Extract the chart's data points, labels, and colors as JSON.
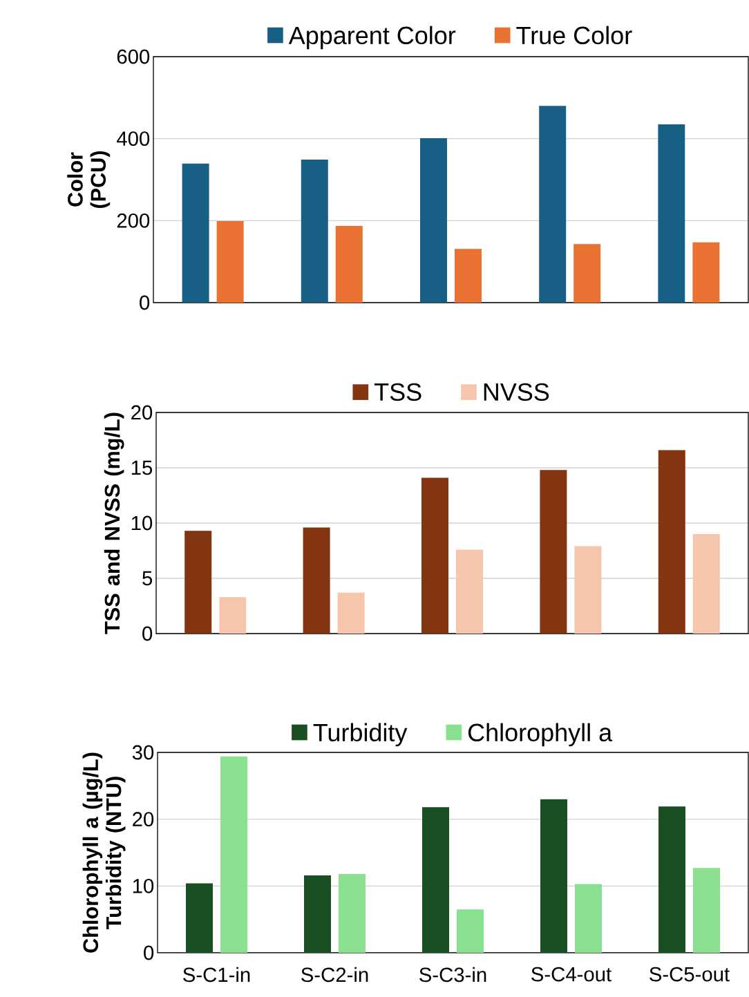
{
  "chart_data": [
    {
      "type": "bar",
      "ylabel": "Color (PCU)",
      "categories": [
        null,
        null,
        null,
        null,
        null
      ],
      "ylim": [
        0,
        600
      ],
      "yticks": [
        0,
        200,
        400,
        600
      ],
      "grid": "y",
      "legend": "top",
      "tick_labels": "y",
      "series": [
        {
          "name": "Apparent Color",
          "color": "#185f85",
          "values": [
            339,
            349,
            401,
            480,
            435
          ]
        },
        {
          "name": "True Color",
          "color": "#e97132",
          "values": [
            199,
            187,
            131,
            143,
            147
          ]
        }
      ]
    },
    {
      "type": "bar",
      "ylabel": "TSS and NVSS (mg/L)",
      "categories": [
        null,
        null,
        null,
        null,
        null
      ],
      "ylim": [
        0,
        20
      ],
      "yticks": [
        0,
        5,
        10,
        15,
        20
      ],
      "grid": "y",
      "legend": "top",
      "tick_labels": "y",
      "series": [
        {
          "name": "TSS",
          "color": "#833511",
          "values": [
            9.3,
            9.6,
            14.1,
            14.8,
            16.6
          ]
        },
        {
          "name": "NVSS",
          "color": "#f6c6ac",
          "values": [
            3.3,
            3.7,
            7.6,
            7.9,
            9.0
          ]
        }
      ]
    },
    {
      "type": "bar",
      "ylabel": "Chlorophyll a (µg/L) Turbidity (NTU)",
      "categories": [
        "S-C1-in",
        "S-C2-in",
        "S-C3-in",
        "S-C4-out",
        "S-C5-out"
      ],
      "ylim": [
        0,
        30
      ],
      "yticks": [
        0,
        10,
        20,
        30
      ],
      "grid": "y",
      "legend": "top",
      "series": [
        {
          "name": "Turbidity",
          "color": "#194f22",
          "values": [
            10.4,
            11.6,
            21.8,
            23.0,
            21.9
          ]
        },
        {
          "name": "Chlorophyll a",
          "color": "#89e18f",
          "values": [
            29.4,
            11.8,
            6.5,
            10.3,
            12.7
          ]
        }
      ]
    }
  ]
}
